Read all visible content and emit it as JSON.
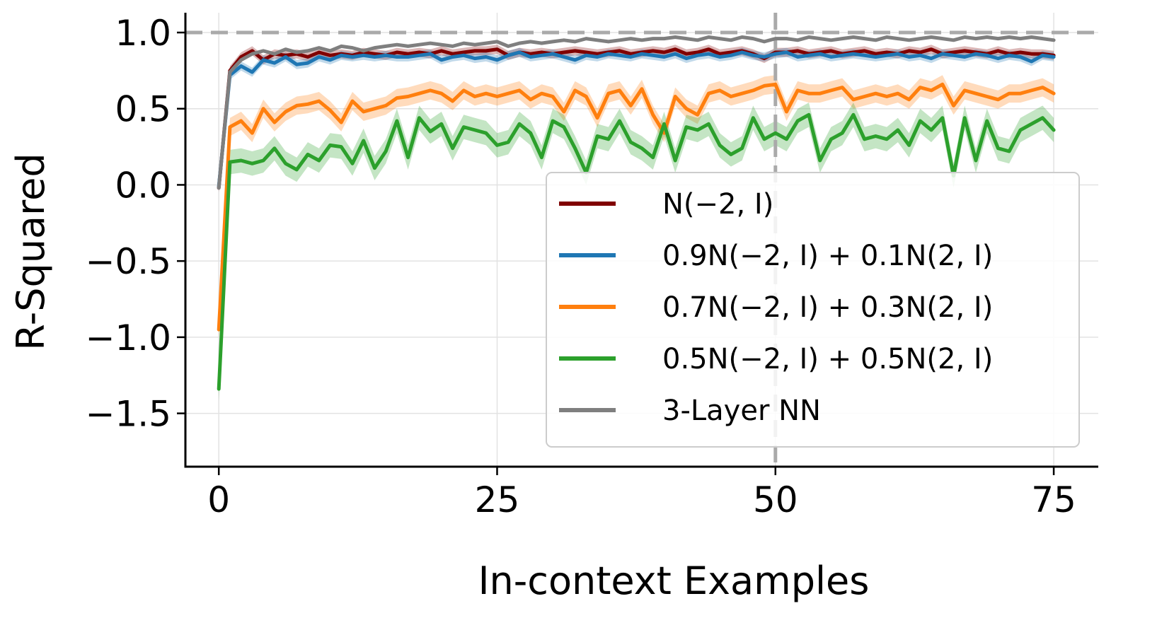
{
  "chart_data": {
    "type": "line",
    "title": "",
    "xlabel": "In-context Examples",
    "ylabel": "R-Squared",
    "xlim": [
      -3,
      79
    ],
    "ylim": [
      -1.85,
      1.13
    ],
    "xticks": [
      0,
      25,
      50,
      75
    ],
    "xtick_labels": [
      "0",
      "25",
      "50",
      "75"
    ],
    "yticks": [
      1.0,
      0.5,
      0.0,
      -0.5,
      -1.0,
      -1.5
    ],
    "ytick_labels": [
      "1.0",
      "0.5",
      "0.0",
      "−0.5",
      "−1.0",
      "−1.5"
    ],
    "grid": true,
    "legend_position": "lower-right",
    "reference_lines": [
      {
        "orientation": "horizontal",
        "value": 1.0,
        "style": "dashed",
        "color": "#aaaaaa"
      },
      {
        "orientation": "vertical",
        "value": 50,
        "style": "dashed",
        "color": "#aaaaaa"
      }
    ],
    "x_start": 0,
    "series": [
      {
        "name": "N(−2, I)",
        "color": "#800000",
        "band": 0.03,
        "values": [
          -0.02,
          0.75,
          0.84,
          0.88,
          0.82,
          0.86,
          0.85,
          0.86,
          0.84,
          0.87,
          0.85,
          0.86,
          0.85,
          0.87,
          0.86,
          0.85,
          0.87,
          0.86,
          0.87,
          0.86,
          0.88,
          0.86,
          0.87,
          0.88,
          0.88,
          0.89,
          0.85,
          0.87,
          0.86,
          0.87,
          0.86,
          0.87,
          0.88,
          0.87,
          0.86,
          0.87,
          0.88,
          0.86,
          0.87,
          0.88,
          0.87,
          0.89,
          0.86,
          0.87,
          0.89,
          0.86,
          0.87,
          0.88,
          0.86,
          0.83,
          0.87,
          0.87,
          0.88,
          0.86,
          0.87,
          0.88,
          0.86,
          0.87,
          0.88,
          0.86,
          0.87,
          0.86,
          0.88,
          0.87,
          0.89,
          0.86,
          0.87,
          0.88,
          0.87,
          0.86,
          0.88,
          0.86,
          0.87,
          0.86,
          0.86,
          0.85
        ]
      },
      {
        "name": "0.9N(−2, I) + 0.1N(2, I)",
        "color": "#1f77b4",
        "band": 0.03,
        "values": [
          -0.01,
          0.72,
          0.78,
          0.74,
          0.82,
          0.8,
          0.84,
          0.79,
          0.8,
          0.84,
          0.82,
          0.85,
          0.84,
          0.85,
          0.84,
          0.85,
          0.84,
          0.84,
          0.85,
          0.86,
          0.82,
          0.84,
          0.85,
          0.83,
          0.84,
          0.82,
          0.85,
          0.87,
          0.84,
          0.85,
          0.86,
          0.84,
          0.82,
          0.85,
          0.84,
          0.86,
          0.85,
          0.84,
          0.86,
          0.85,
          0.84,
          0.86,
          0.83,
          0.85,
          0.86,
          0.84,
          0.85,
          0.87,
          0.85,
          0.84,
          0.86,
          0.87,
          0.84,
          0.85,
          0.86,
          0.84,
          0.85,
          0.86,
          0.85,
          0.84,
          0.85,
          0.86,
          0.84,
          0.85,
          0.83,
          0.86,
          0.85,
          0.84,
          0.86,
          0.85,
          0.83,
          0.85,
          0.84,
          0.81,
          0.85,
          0.84
        ]
      },
      {
        "name": "0.7N(−2, I) + 0.3N(2, I)",
        "color": "#ff7f0e",
        "band": 0.06,
        "values": [
          -0.95,
          0.38,
          0.42,
          0.34,
          0.5,
          0.41,
          0.48,
          0.52,
          0.53,
          0.55,
          0.49,
          0.41,
          0.55,
          0.48,
          0.5,
          0.52,
          0.57,
          0.58,
          0.6,
          0.62,
          0.6,
          0.55,
          0.62,
          0.58,
          0.6,
          0.58,
          0.6,
          0.62,
          0.56,
          0.6,
          0.58,
          0.48,
          0.62,
          0.58,
          0.44,
          0.6,
          0.62,
          0.52,
          0.63,
          0.46,
          0.34,
          0.58,
          0.5,
          0.46,
          0.6,
          0.62,
          0.58,
          0.6,
          0.62,
          0.65,
          0.66,
          0.48,
          0.62,
          0.6,
          0.6,
          0.62,
          0.64,
          0.56,
          0.58,
          0.6,
          0.58,
          0.6,
          0.56,
          0.64,
          0.62,
          0.66,
          0.52,
          0.62,
          0.6,
          0.58,
          0.56,
          0.6,
          0.6,
          0.62,
          0.64,
          0.6
        ]
      },
      {
        "name": "0.5N(−2, I) + 0.5N(2, I)",
        "color": "#2ca02c",
        "band": 0.08,
        "values": [
          -1.34,
          0.15,
          0.16,
          0.14,
          0.16,
          0.24,
          0.14,
          0.1,
          0.2,
          0.16,
          0.26,
          0.25,
          0.14,
          0.29,
          0.11,
          0.22,
          0.42,
          0.18,
          0.44,
          0.35,
          0.4,
          0.24,
          0.38,
          0.36,
          0.34,
          0.26,
          0.28,
          0.4,
          0.34,
          0.18,
          0.42,
          0.38,
          0.24,
          0.08,
          0.32,
          0.3,
          0.42,
          0.28,
          0.24,
          0.18,
          0.4,
          0.16,
          0.38,
          0.36,
          0.4,
          0.26,
          0.2,
          0.24,
          0.44,
          0.3,
          0.34,
          0.3,
          0.42,
          0.46,
          0.16,
          0.3,
          0.34,
          0.46,
          0.3,
          0.32,
          0.3,
          0.36,
          0.26,
          0.42,
          0.36,
          0.44,
          0.06,
          0.44,
          0.16,
          0.42,
          0.24,
          0.22,
          0.36,
          0.4,
          0.44,
          0.36
        ]
      },
      {
        "name": "3-Layer NN",
        "color": "#7f7f7f",
        "band": 0.0,
        "values": [
          -0.02,
          0.74,
          0.82,
          0.86,
          0.88,
          0.86,
          0.89,
          0.87,
          0.88,
          0.9,
          0.88,
          0.91,
          0.9,
          0.88,
          0.9,
          0.91,
          0.92,
          0.91,
          0.92,
          0.93,
          0.92,
          0.91,
          0.93,
          0.92,
          0.93,
          0.94,
          0.91,
          0.93,
          0.94,
          0.93,
          0.94,
          0.95,
          0.94,
          0.96,
          0.95,
          0.94,
          0.95,
          0.96,
          0.95,
          0.96,
          0.96,
          0.97,
          0.96,
          0.95,
          0.97,
          0.96,
          0.95,
          0.97,
          0.96,
          0.94,
          0.96,
          0.96,
          0.95,
          0.97,
          0.96,
          0.95,
          0.96,
          0.97,
          0.96,
          0.95,
          0.97,
          0.96,
          0.95,
          0.96,
          0.97,
          0.96,
          0.95,
          0.97,
          0.96,
          0.97,
          0.96,
          0.97,
          0.96,
          0.97,
          0.96,
          0.95
        ]
      }
    ]
  }
}
